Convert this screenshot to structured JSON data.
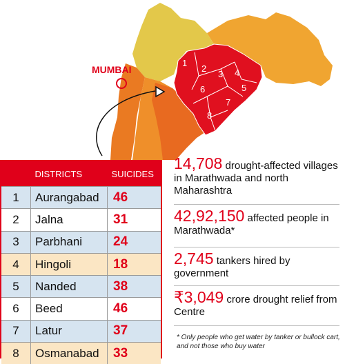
{
  "map": {
    "city_label": "MUMBAI",
    "district_numbers": [
      "1",
      "2",
      "3",
      "4",
      "5",
      "6",
      "7",
      "8"
    ],
    "colors": {
      "north_region": "#e3c84a",
      "marathwada": "#e0101f",
      "west_orange": "#ea7a22",
      "central_orange": "#ef8f2a",
      "east_region": "#f0a531",
      "south_orange": "#e86a20",
      "sea": "#ffffff"
    }
  },
  "table": {
    "headers": [
      "",
      "DISTRICTS",
      "SUICIDES"
    ],
    "rows": [
      {
        "idx": "1",
        "district": "Aurangabad",
        "suicides": "46"
      },
      {
        "idx": "2",
        "district": "Jalna",
        "suicides": "31"
      },
      {
        "idx": "3",
        "district": "Parbhani",
        "suicides": "24"
      },
      {
        "idx": "4",
        "district": "Hingoli",
        "suicides": "18"
      },
      {
        "idx": "5",
        "district": "Nanded",
        "suicides": "38"
      },
      {
        "idx": "6",
        "district": "Beed",
        "suicides": "46"
      },
      {
        "idx": "7",
        "district": "Latur",
        "suicides": "37"
      },
      {
        "idx": "8",
        "district": "Osmanabad",
        "suicides": "33"
      }
    ]
  },
  "facts": [
    {
      "big": "14,708",
      "text": " drought-affected villages in Marathwada and north Maharashtra"
    },
    {
      "big": "42,92,150",
      "text": " affected people in Marathwada*"
    },
    {
      "big": "2,745",
      "text": " tankers hired by government"
    },
    {
      "big": "₹3,049",
      "text": " crore drought relief from Centre"
    }
  ],
  "footnote": "* Only people who get water by tanker or bullock cart, and not those who buy water",
  "accent_color": "#e0001a"
}
